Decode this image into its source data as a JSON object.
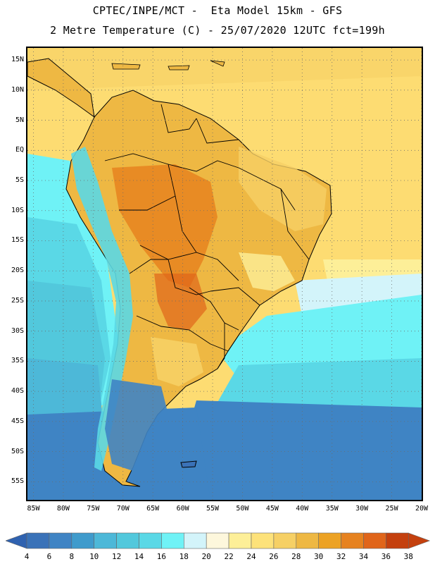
{
  "header": {
    "line1": "CPTEC/INPE/MCT -  Eta Model 15km - GFS",
    "line2": "2 Metre Temperature (C) - 25/07/2020 12UTC fct=199h"
  },
  "map": {
    "lat_labels": [
      "15N",
      "10N",
      "5N",
      "EQ",
      "5S",
      "10S",
      "15S",
      "20S",
      "25S",
      "30S",
      "35S",
      "40S",
      "45S",
      "50S",
      "55S"
    ],
    "lat_values": [
      15,
      10,
      5,
      0,
      -5,
      -10,
      -15,
      -20,
      -25,
      -30,
      -35,
      -40,
      -45,
      -50,
      -55
    ],
    "lon_labels": [
      "85W",
      "80W",
      "75W",
      "70W",
      "65W",
      "60W",
      "55W",
      "50W",
      "45W",
      "40W",
      "35W",
      "30W",
      "25W",
      "20W"
    ],
    "lon_values": [
      -85,
      -80,
      -75,
      -70,
      -65,
      -60,
      -55,
      -50,
      -45,
      -40,
      -35,
      -30,
      -25,
      -20
    ],
    "lat_range": [
      -58,
      17
    ],
    "lon_range": [
      -86,
      -20
    ]
  },
  "colorbar": {
    "labels": [
      "4",
      "6",
      "8",
      "10",
      "12",
      "14",
      "16",
      "18",
      "20",
      "22",
      "24",
      "26",
      "28",
      "30",
      "32",
      "34",
      "36",
      "38"
    ],
    "colors": [
      "#3a72b8",
      "#3f84c4",
      "#3f9bcc",
      "#4db8d8",
      "#52c8dc",
      "#5ad8e6",
      "#6ff2f6",
      "#d3f4fa",
      "#fdf7dc",
      "#fdef98",
      "#fde27a",
      "#f6d065",
      "#eeb843",
      "#eca224",
      "#e6821f",
      "#e0651a",
      "#c4400e"
    ],
    "low_color": "#2f62b0",
    "high_color": "#c4400e"
  }
}
